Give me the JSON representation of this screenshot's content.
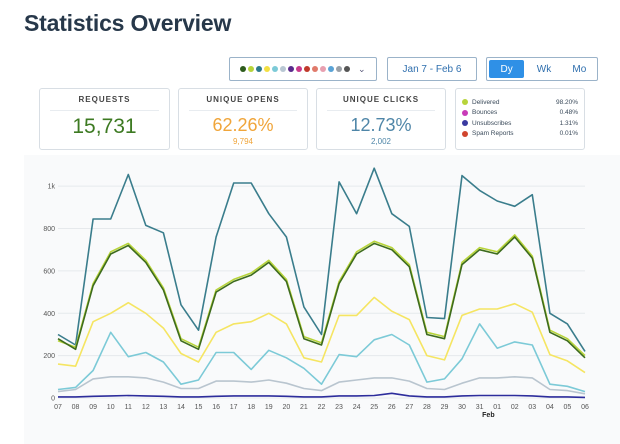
{
  "page": {
    "title": "Statistics Overview"
  },
  "toolbar": {
    "category_colors": [
      "#2d5b1c",
      "#b7d43a",
      "#2d7a8c",
      "#f3df42",
      "#7ccad7",
      "#b8c7d3",
      "#5a2a8c",
      "#c93b8c",
      "#c0392b",
      "#e07a6b",
      "#e89fb0",
      "#5aa3d6",
      "#9aa0a6",
      "#555555"
    ],
    "date_range": "Jan 7 - Feb 6",
    "granularity": {
      "day": "Dy",
      "week": "Wk",
      "month": "Mo",
      "selected": "Dy"
    }
  },
  "stats": {
    "requests": {
      "label": "REQUESTS",
      "value": "15,731"
    },
    "unique_opens": {
      "label": "UNIQUE OPENS",
      "value": "62.26%",
      "count": "9,794"
    },
    "unique_clicks": {
      "label": "UNIQUE CLICKS",
      "value": "12.73%",
      "count": "2,002"
    }
  },
  "legend": [
    {
      "name": "Delivered",
      "value": "98.20%",
      "color": "#b7d43a"
    },
    {
      "name": "Bounces",
      "value": "0.48%",
      "color": "#c93bb8"
    },
    {
      "name": "Unsubscribes",
      "value": "1.31%",
      "color": "#3a3aa0"
    },
    {
      "name": "Spam Reports",
      "value": "0.01%",
      "color": "#d0452e"
    }
  ],
  "colors": {
    "requests_value": "#3d7a22",
    "opens_value": "#f0a53a",
    "clicks_value": "#4f86a8"
  },
  "chart_data": {
    "type": "line",
    "x": [
      "07",
      "08",
      "09",
      "10",
      "11",
      "12",
      "13",
      "14",
      "15",
      "16",
      "17",
      "18",
      "19",
      "20",
      "21",
      "22",
      "23",
      "24",
      "25",
      "26",
      "27",
      "28",
      "29",
      "30",
      "31",
      "01",
      "02",
      "03",
      "04",
      "05",
      "06"
    ],
    "x_group_label": "Feb",
    "y_ticks": [
      "0",
      "200",
      "400",
      "600",
      "800",
      "1k"
    ],
    "ylim": [
      0,
      1100
    ],
    "series": [
      {
        "color": "#3a7d8c",
        "values": [
          300,
          250,
          845,
          845,
          1055,
          815,
          780,
          440,
          320,
          760,
          1015,
          1015,
          870,
          760,
          430,
          300,
          1020,
          870,
          1085,
          870,
          810,
          380,
          375,
          1050,
          980,
          930,
          905,
          960,
          400,
          350,
          220
        ]
      },
      {
        "color": "#b7d43a",
        "values": [
          270,
          240,
          540,
          690,
          730,
          650,
          520,
          280,
          240,
          510,
          560,
          590,
          650,
          560,
          290,
          260,
          550,
          690,
          740,
          710,
          630,
          310,
          290,
          640,
          710,
          690,
          770,
          670,
          320,
          280,
          200
        ]
      },
      {
        "color": "#3d6b1d",
        "values": [
          280,
          230,
          530,
          680,
          720,
          640,
          510,
          270,
          230,
          500,
          550,
          580,
          640,
          550,
          280,
          250,
          540,
          680,
          730,
          700,
          620,
          300,
          280,
          630,
          700,
          680,
          760,
          660,
          310,
          270,
          190
        ]
      },
      {
        "color": "#f5e562",
        "values": [
          160,
          150,
          360,
          400,
          450,
          400,
          330,
          210,
          170,
          310,
          350,
          360,
          400,
          350,
          190,
          170,
          390,
          390,
          475,
          410,
          370,
          200,
          180,
          390,
          420,
          420,
          445,
          405,
          205,
          175,
          120
        ]
      },
      {
        "color": "#7ccad7",
        "values": [
          40,
          50,
          130,
          310,
          195,
          215,
          170,
          65,
          85,
          215,
          215,
          135,
          225,
          190,
          140,
          65,
          205,
          195,
          275,
          300,
          250,
          75,
          90,
          185,
          350,
          235,
          265,
          250,
          65,
          55,
          30
        ]
      },
      {
        "color": "#b9c5cf",
        "values": [
          30,
          40,
          90,
          100,
          100,
          95,
          75,
          45,
          45,
          80,
          80,
          75,
          85,
          70,
          45,
          35,
          75,
          85,
          95,
          95,
          80,
          45,
          40,
          70,
          95,
          95,
          100,
          95,
          40,
          35,
          20
        ]
      },
      {
        "color": "#2d2d9c",
        "values": [
          5,
          5,
          8,
          10,
          12,
          10,
          8,
          5,
          5,
          8,
          10,
          10,
          10,
          8,
          5,
          5,
          10,
          10,
          12,
          22,
          10,
          5,
          5,
          10,
          12,
          12,
          12,
          10,
          5,
          5,
          3
        ]
      }
    ]
  }
}
